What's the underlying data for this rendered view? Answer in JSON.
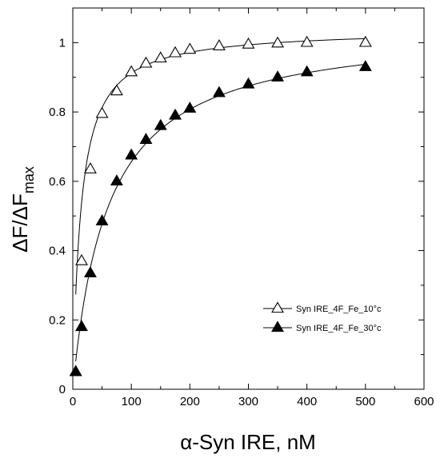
{
  "chart_data": {
    "type": "scatter",
    "xlabel": "α-Syn IRE, nM",
    "ylabel_main": "ΔF/ΔF",
    "ylabel_sub": "max",
    "xlim": [
      0,
      600
    ],
    "ylim": [
      0,
      1.1
    ],
    "xticks": [
      0,
      100,
      200,
      300,
      400,
      500,
      600
    ],
    "yticks": [
      0,
      0.2,
      0.4,
      0.6,
      0.8,
      1
    ],
    "ytick_labels": [
      "0",
      "0.2",
      "0.4",
      "0.6",
      "0.8",
      "1"
    ],
    "grid": false,
    "legend_position": "center-right",
    "series": [
      {
        "name": "Syn IRE_4F_Fe_10°c",
        "marker": "open-triangle",
        "color": "#000000",
        "x": [
          5,
          15,
          30,
          50,
          75,
          100,
          125,
          150,
          175,
          200,
          250,
          300,
          350,
          400,
          500
        ],
        "y": [
          0.05,
          0.37,
          0.635,
          0.795,
          0.86,
          0.915,
          0.94,
          0.955,
          0.97,
          0.98,
          0.99,
          0.995,
          0.998,
          1.0,
          1.0
        ],
        "fit": {
          "model": "hyperbolic",
          "Bmax": 1.04,
          "Kd": 14
        }
      },
      {
        "name": "Syn IRE_4F_Fe_30°c",
        "marker": "filled-triangle",
        "color": "#000000",
        "x": [
          5,
          15,
          30,
          50,
          75,
          100,
          125,
          150,
          175,
          200,
          250,
          300,
          350,
          400,
          500
        ],
        "y": [
          0.05,
          0.18,
          0.335,
          0.485,
          0.6,
          0.675,
          0.72,
          0.76,
          0.79,
          0.81,
          0.855,
          0.88,
          0.9,
          0.915,
          0.93
        ],
        "fit": {
          "model": "hyperbolic",
          "Bmax": 1.05,
          "Kd": 60
        }
      }
    ]
  }
}
